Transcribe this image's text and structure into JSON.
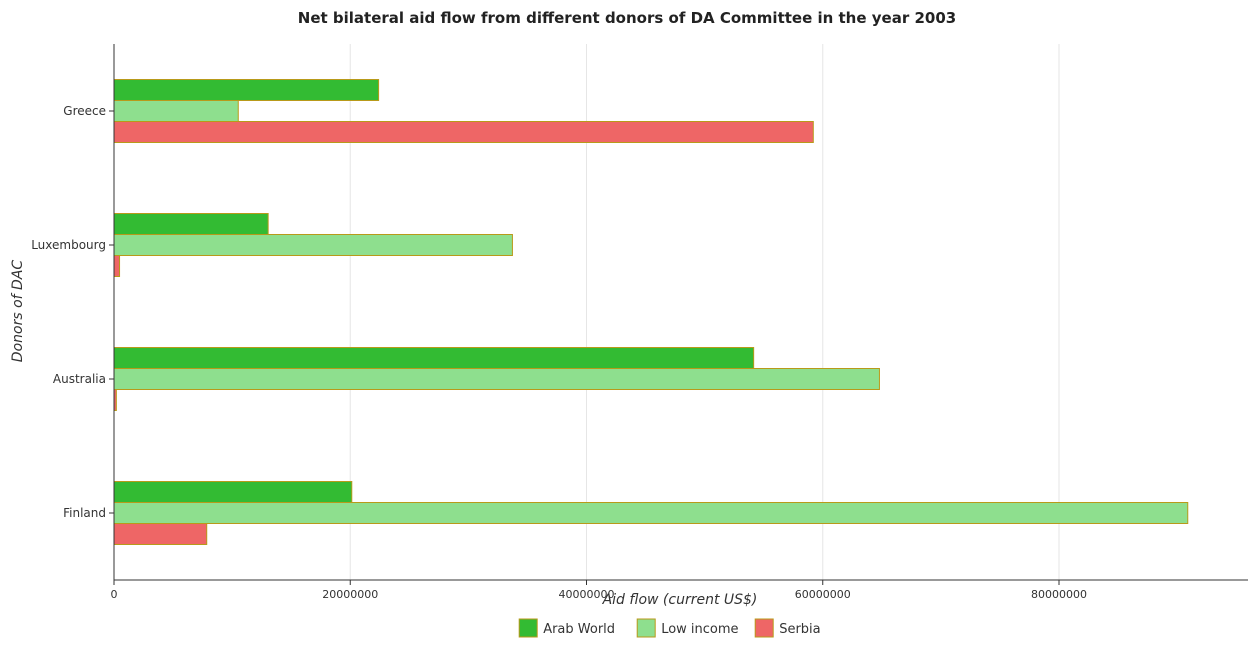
{
  "chart_data": {
    "type": "bar",
    "orientation": "horizontal",
    "title": "Net bilateral aid flow from different donors of DA Committee in the year 2003",
    "xlabel": "Aid flow (current US$)",
    "ylabel": "Donors of DAC",
    "categories": [
      "Greece",
      "Luxembourg",
      "Australia",
      "Finland"
    ],
    "xlim": [
      0,
      96000000
    ],
    "xticks": [
      0,
      20000000,
      40000000,
      60000000,
      80000000
    ],
    "xtick_labels": [
      "0",
      "20000000",
      "40000000",
      "60000000",
      "80000000"
    ],
    "grid": true,
    "legend_position": "bottom-center",
    "series": [
      {
        "name": "Arab World",
        "color": "#33bb33",
        "values": [
          22400000,
          13050000,
          54150000,
          20130000
        ]
      },
      {
        "name": "Low income",
        "color": "#8edf8e",
        "values": [
          10520000,
          33730000,
          64800000,
          90900000
        ]
      },
      {
        "name": "Serbia",
        "color": "#ee6666",
        "values": [
          59200000,
          470000,
          200000,
          7850000
        ]
      }
    ]
  }
}
